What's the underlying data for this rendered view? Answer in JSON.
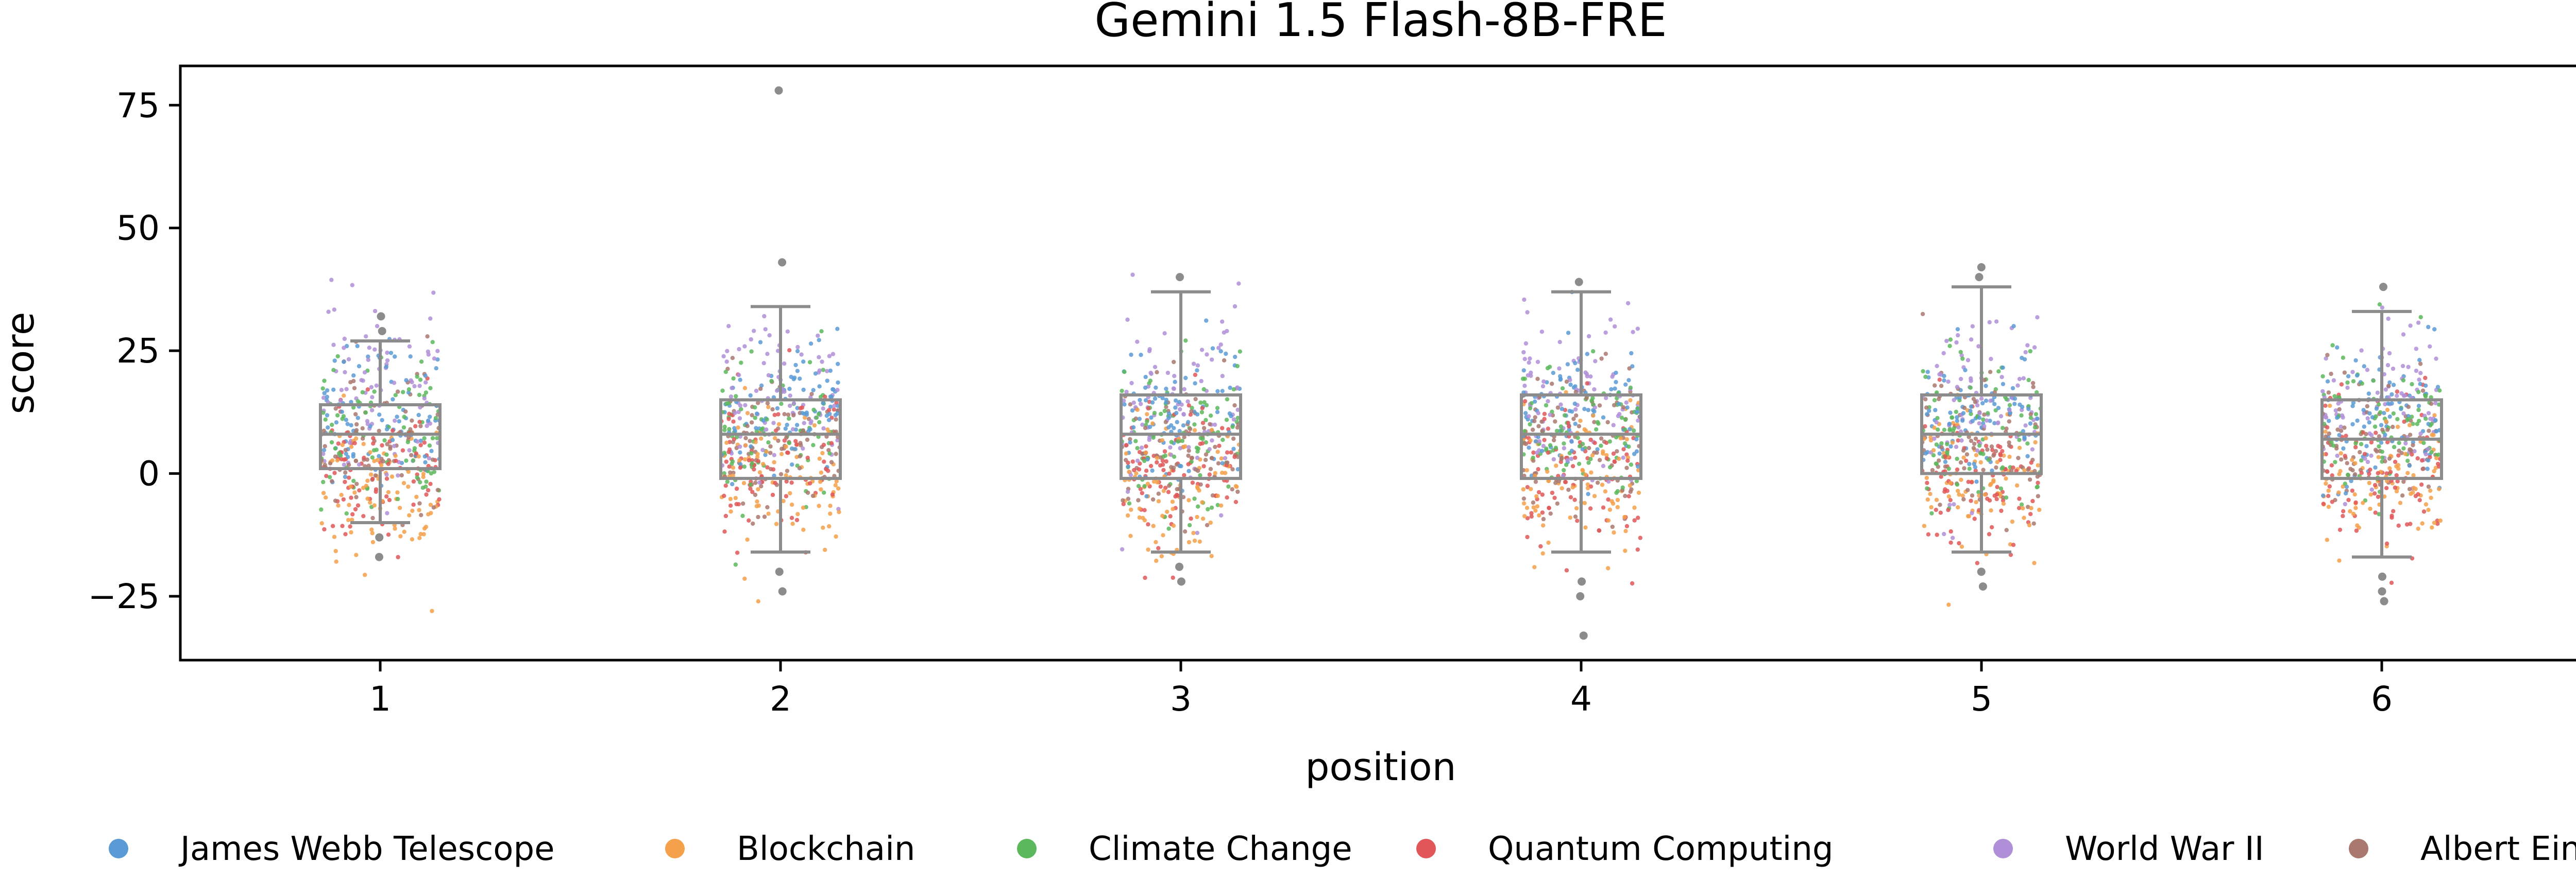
{
  "chart_data": {
    "type": "scatter",
    "title": "Gemini 1.5 Flash-8B-FRE",
    "xlabel": "position",
    "ylabel": "score",
    "x_categories": [
      "1",
      "2",
      "3",
      "4",
      "5",
      "6"
    ],
    "y_ticks": [
      75,
      50,
      25,
      0,
      -25
    ],
    "y_tick_labels": [
      "75",
      "50",
      "25",
      "0",
      "−25"
    ],
    "ylim": [
      -38,
      83
    ],
    "grid": false,
    "legend_position": "bottom",
    "series": [
      {
        "name": "James Webb Telescope",
        "color": "#5b9bd5",
        "mean": 12,
        "sd": 7
      },
      {
        "name": "Blockchain",
        "color": "#f5a04a",
        "mean": -2,
        "sd": 8
      },
      {
        "name": "Climate Change",
        "color": "#5cb85c",
        "mean": 8,
        "sd": 8
      },
      {
        "name": "Quantum Computing",
        "color": "#e15759",
        "mean": 0,
        "sd": 8
      },
      {
        "name": "World War II",
        "color": "#b08fd8",
        "mean": 15,
        "sd": 9
      },
      {
        "name": "Albert Einstein",
        "color": "#a9786e",
        "mean": 6,
        "sd": 7
      }
    ],
    "boxes": [
      {
        "position": "1",
        "q1": 1,
        "median": 8,
        "q3": 14,
        "whisker_low": -10,
        "whisker_high": 27,
        "outliers": [
          32,
          29,
          -13,
          -17
        ]
      },
      {
        "position": "2",
        "q1": -1,
        "median": 8,
        "q3": 15,
        "whisker_low": -16,
        "whisker_high": 34,
        "outliers": [
          78,
          43,
          -20,
          -24
        ]
      },
      {
        "position": "3",
        "q1": -1,
        "median": 8,
        "q3": 16,
        "whisker_low": -16,
        "whisker_high": 37,
        "outliers": [
          40,
          -19,
          -22
        ]
      },
      {
        "position": "4",
        "q1": -1,
        "median": 8,
        "q3": 16,
        "whisker_low": -16,
        "whisker_high": 37,
        "outliers": [
          39,
          -22,
          -25,
          -33
        ]
      },
      {
        "position": "5",
        "q1": 0,
        "median": 8,
        "q3": 16,
        "whisker_low": -16,
        "whisker_high": 38,
        "outliers": [
          42,
          40,
          -20,
          -23
        ]
      },
      {
        "position": "6",
        "q1": -1,
        "median": 7,
        "q3": 15,
        "whisker_low": -17,
        "whisker_high": 33,
        "outliers": [
          38,
          -21,
          -24,
          -26
        ]
      }
    ],
    "points_per_series_per_position": 85
  }
}
